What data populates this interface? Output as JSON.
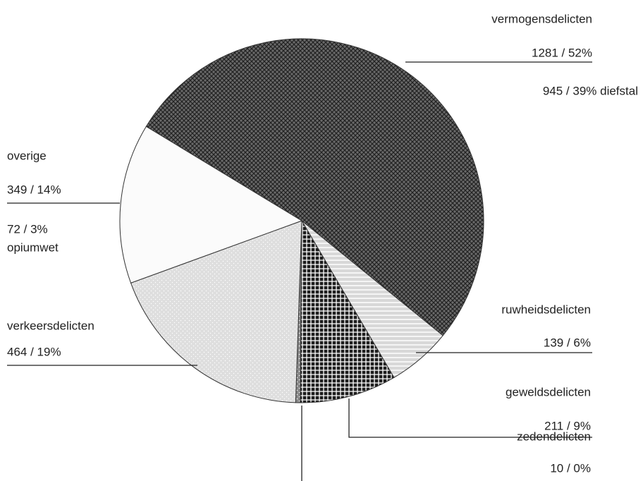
{
  "chart_data": {
    "type": "pie",
    "categories": [
      "vermogensdelicten",
      "ruwheidsdelicten",
      "geweldsdelicten",
      "zedendelicten",
      "verkeersdelicten",
      "overige"
    ],
    "values": [
      1281,
      139,
      211,
      10,
      464,
      349
    ],
    "value_labels": [
      "1281 / 52%",
      "139 / 6%",
      "211 / 9%",
      "10 / 0%",
      "464 / 19%",
      "349 / 14%"
    ],
    "colors": [
      "#6a6a6a",
      "#d8d8d8",
      "#1e1e1e",
      "#888888",
      "#dedede",
      "#fbfbfb"
    ],
    "annotations": [
      {
        "text": "945 / 39% diefstal"
      },
      {
        "text": "72 / 3%"
      },
      {
        "text": "opiumwet"
      }
    ]
  }
}
